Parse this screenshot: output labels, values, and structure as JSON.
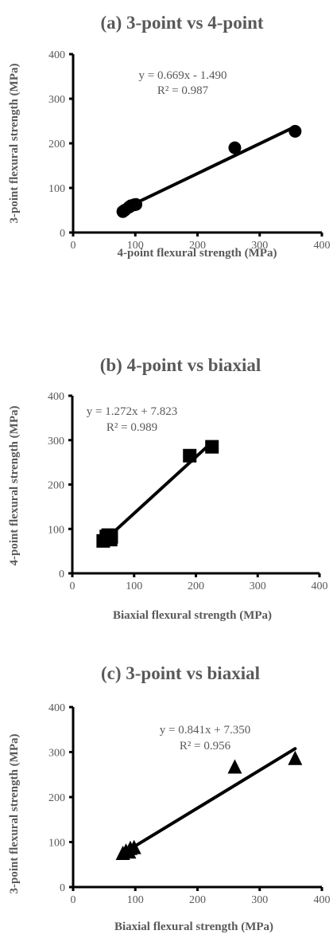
{
  "chart_data": [
    {
      "type": "scatter",
      "title": "(a) 3-point vs 4-point",
      "xlabel": "4-point flexural strength (MPa)",
      "ylabel": "3-point flexural strength (MPa)",
      "xlim": [
        0,
        400
      ],
      "ylim": [
        0,
        400
      ],
      "xticks": [
        0,
        100,
        200,
        300,
        400
      ],
      "yticks": [
        0,
        100,
        200,
        300,
        400
      ],
      "marker": "circle",
      "marker_color": "#000000",
      "series": [
        {
          "x": [
            80,
            83,
            90,
            93,
            98,
            101,
            260,
            357
          ],
          "y": [
            47,
            50,
            57,
            60,
            62,
            63,
            190,
            227
          ]
        }
      ],
      "trendline": {
        "equation": "y = 0.669x - 1.490",
        "r2": "R² = 0.987",
        "slope": 0.669,
        "intercept": -1.49,
        "x_range": [
          80,
          357
        ]
      },
      "grid": false
    },
    {
      "type": "scatter",
      "title": "(b) 4-point vs biaxial",
      "xlabel": "Biaxial flexural strength (MPa)",
      "ylabel": "4-point flexural strength (MPa)",
      "xlim": [
        0,
        400
      ],
      "ylim": [
        0,
        400
      ],
      "xticks": [
        0,
        100,
        200,
        300,
        400
      ],
      "yticks": [
        0,
        100,
        200,
        300,
        400
      ],
      "marker": "square",
      "marker_color": "#000000",
      "series": [
        {
          "x": [
            50,
            55,
            58,
            62,
            63,
            190,
            226
          ],
          "y": [
            73,
            83,
            86,
            76,
            82,
            265,
            285
          ]
        }
      ],
      "trendline": {
        "equation": "y = 1.272x + 7.823",
        "r2": "R² = 0.989",
        "slope": 1.272,
        "intercept": 7.823,
        "x_range": [
          50,
          226
        ]
      },
      "grid": false
    },
    {
      "type": "scatter",
      "title": "(c) 3-point vs biaxial",
      "xlabel": "Biaxial flexural strength (MPa)",
      "ylabel": "3-point flexural strength (MPa)",
      "xlim": [
        0,
        400
      ],
      "ylim": [
        0,
        400
      ],
      "xticks": [
        0,
        100,
        200,
        300,
        400
      ],
      "yticks": [
        0,
        100,
        200,
        300,
        400
      ],
      "marker": "triangle",
      "marker_color": "#000000",
      "series": [
        {
          "x": [
            80,
            85,
            90,
            92,
            98,
            260,
            357
          ],
          "y": [
            73,
            78,
            76,
            84,
            86,
            265,
            284
          ]
        }
      ],
      "trendline": {
        "equation": "y = 0.841x + 7.350",
        "r2": "R² = 0.956",
        "slope": 0.841,
        "intercept": 7.35,
        "x_range": [
          80,
          357
        ]
      },
      "grid": false
    }
  ]
}
